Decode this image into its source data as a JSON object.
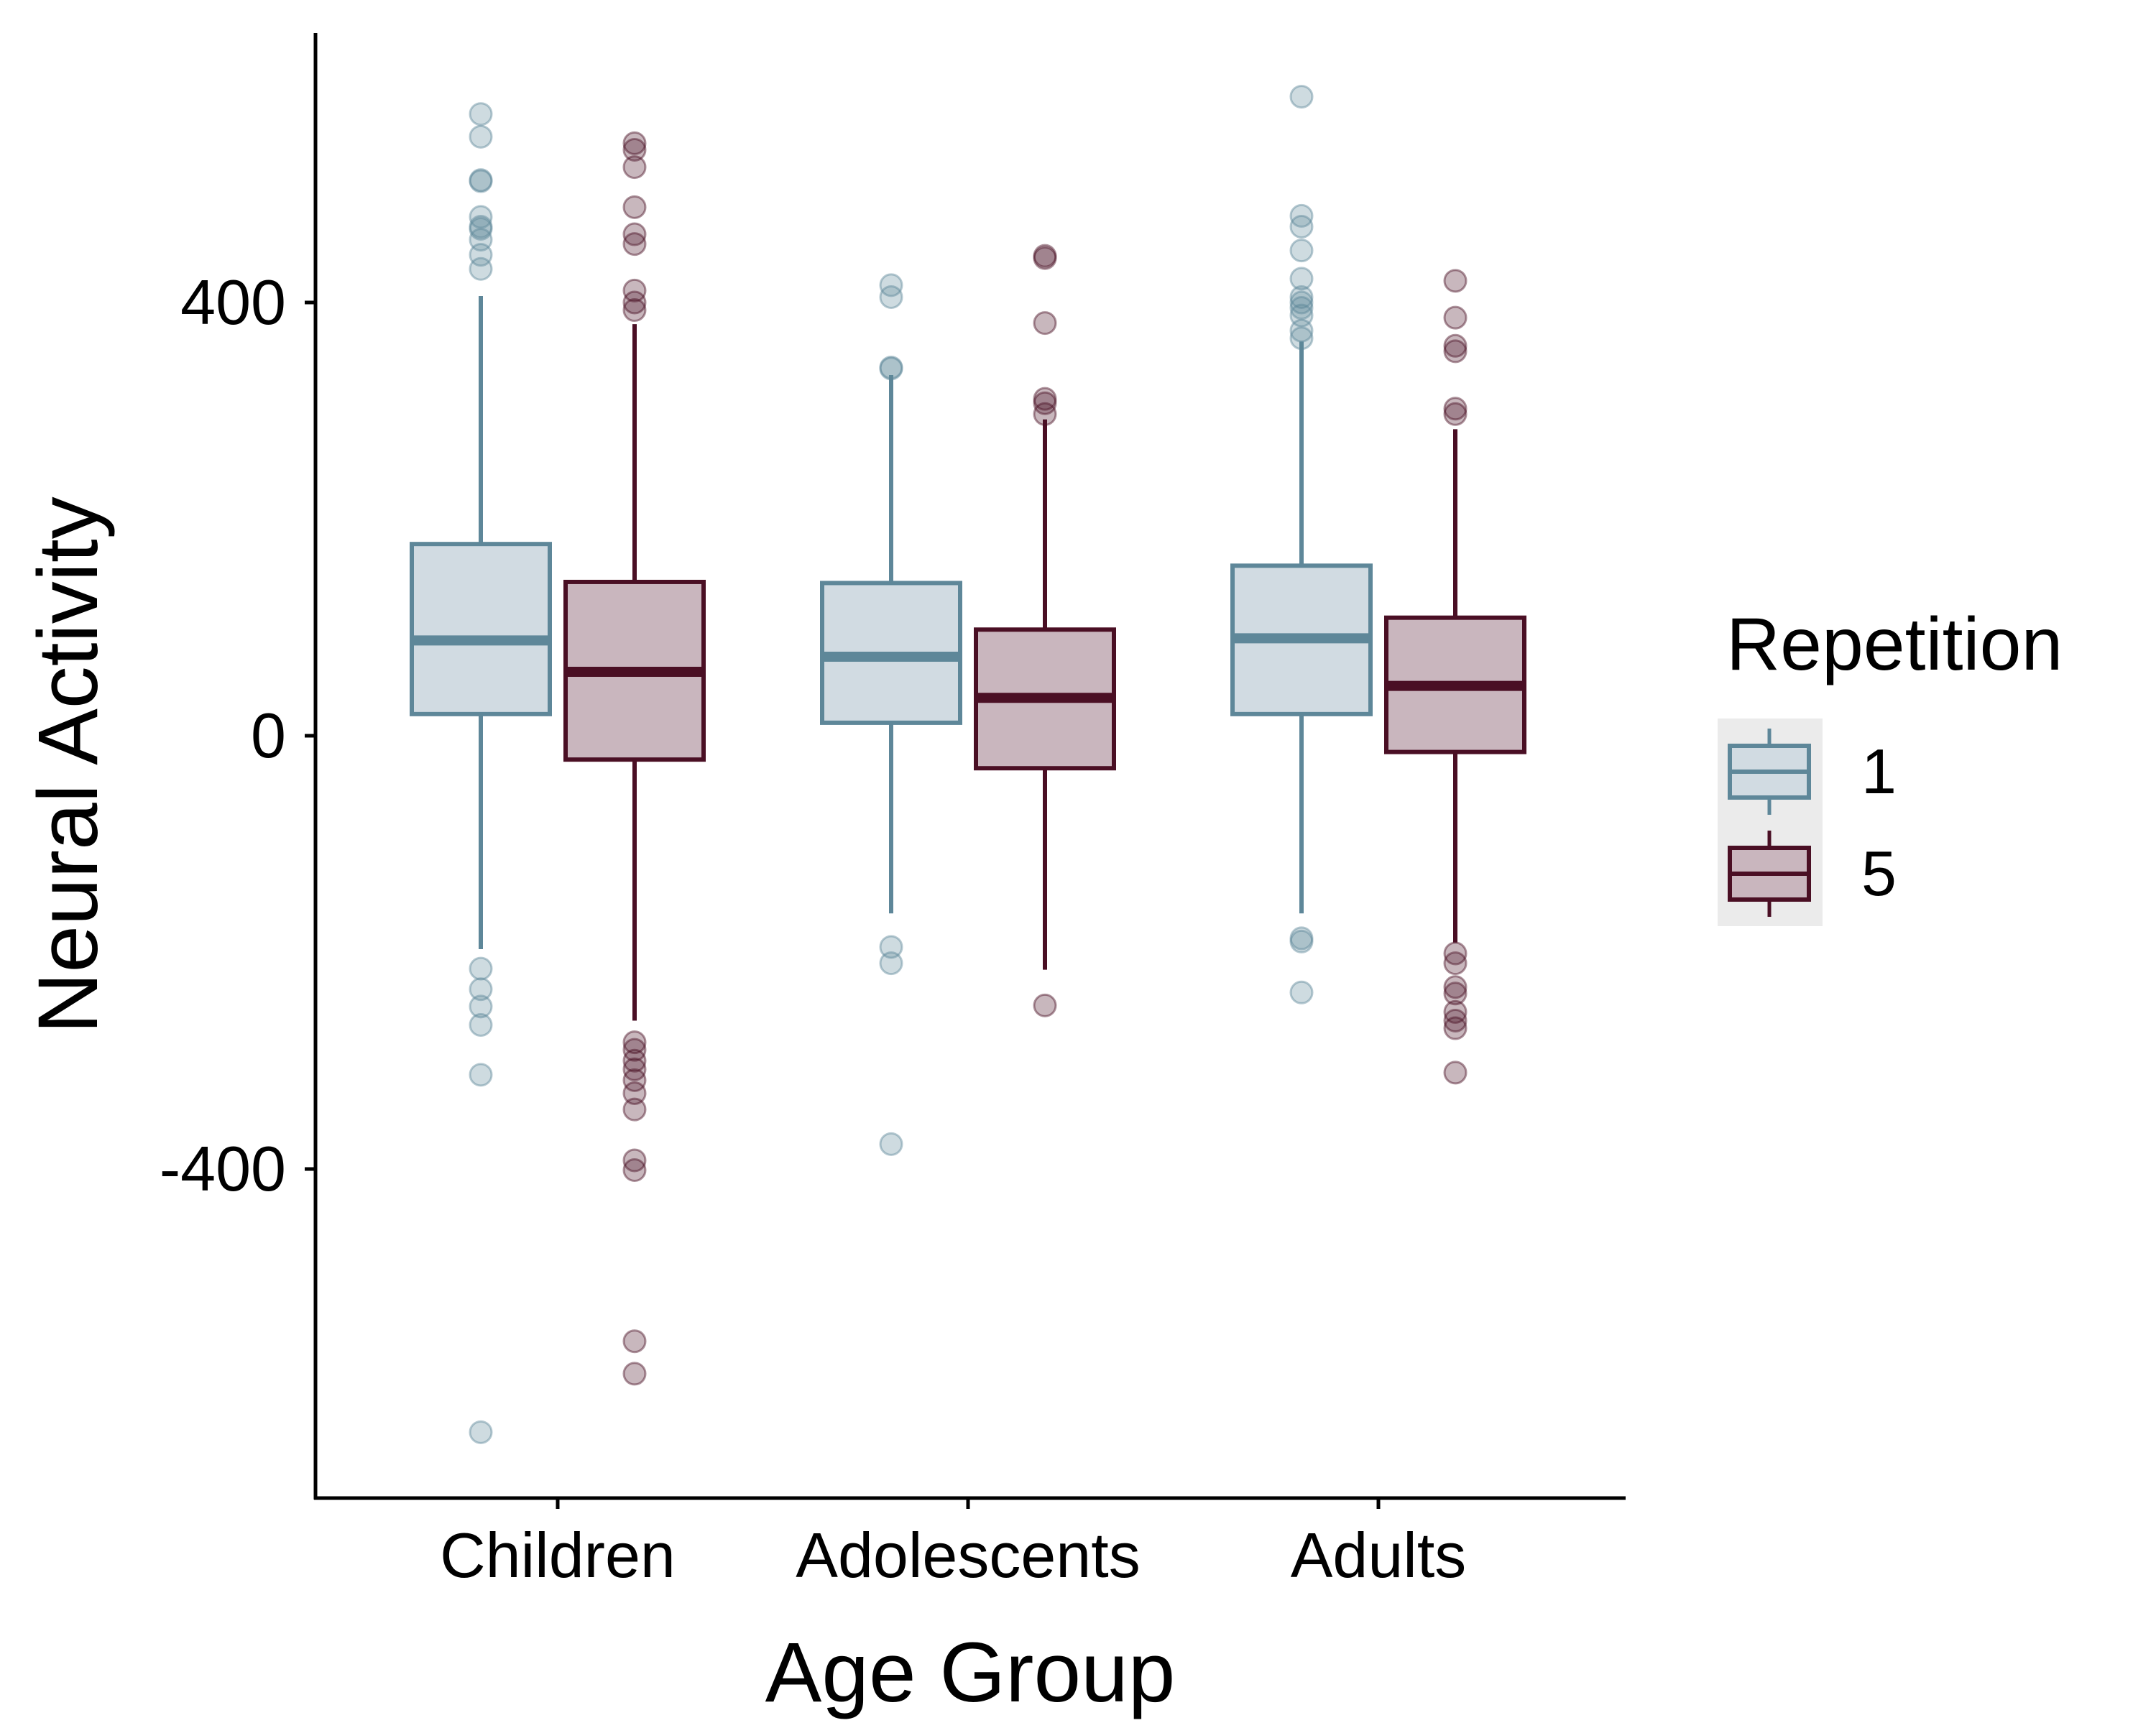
{
  "chart_data": {
    "type": "boxplot",
    "xlabel": "Age Group",
    "ylabel": "Neural Activity",
    "categories": [
      "Children",
      "Adolescents",
      "Adults"
    ],
    "yticks": [
      400,
      0,
      -400
    ],
    "ylim": [
      -700,
      655
    ],
    "legend": {
      "title": "Repetition",
      "position": "right",
      "entries": [
        "1",
        "5"
      ]
    },
    "series": [
      {
        "name": "1",
        "color": "#5e8799",
        "fill": "#d1dbe2",
        "boxes": [
          {
            "category": "Children",
            "whisker_low": -197,
            "q1": 20,
            "median": 88,
            "q3": 177,
            "whisker_high": 406,
            "outliers": [
              574,
              553,
              513,
              512,
              479,
              470,
              468,
              458,
              444,
              431,
              -215,
              -234,
              -250,
              -267,
              -313,
              -643
            ]
          },
          {
            "category": "Adolescents",
            "whisker_low": -164,
            "q1": 12,
            "median": 73,
            "q3": 141,
            "whisker_high": 333,
            "outliers": [
              416,
              405,
              340,
              339,
              -195,
              -210,
              -377
            ]
          },
          {
            "category": "Adults",
            "whisker_low": -164,
            "q1": 20,
            "median": 90,
            "q3": 157,
            "whisker_high": 364,
            "outliers": [
              590,
              480,
              470,
              448,
              422,
              405,
              400,
              395,
              388,
              374,
              367,
              -187,
              -190,
              -237
            ]
          }
        ]
      },
      {
        "name": "5",
        "color": "#4a0f24",
        "fill": "#c9b6be",
        "boxes": [
          {
            "category": "Children",
            "whisker_low": -263,
            "q1": -22,
            "median": 59,
            "q3": 142,
            "whisker_high": 380,
            "outliers": [
              547,
              541,
              525,
              488,
              463,
              454,
              411,
              400,
              393,
              -283,
              -290,
              -300,
              -308,
              -318,
              -330,
              -345,
              -392,
              -401,
              -559,
              -589
            ]
          },
          {
            "category": "Adolescents",
            "whisker_low": -216,
            "q1": -30,
            "median": 35,
            "q3": 98,
            "whisker_high": 292,
            "outliers": [
              443,
              441,
              381,
              311,
              307,
              297,
              -249
            ]
          },
          {
            "category": "Adults",
            "whisker_low": -191,
            "q1": -15,
            "median": 46,
            "q3": 109,
            "whisker_high": 283,
            "outliers": [
              420,
              386,
              360,
              355,
              302,
              297,
              -201,
              -210,
              -232,
              -238,
              -255,
              -263,
              -270,
              -311
            ]
          }
        ]
      }
    ]
  }
}
